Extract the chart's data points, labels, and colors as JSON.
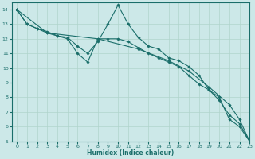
{
  "xlabel": "Humidex (Indice chaleur)",
  "bg_color": "#cce8e8",
  "grid_color": "#b0d4cc",
  "line_color": "#1a6e6a",
  "xlim": [
    -0.5,
    23
  ],
  "ylim": [
    5,
    14.5
  ],
  "xticks": [
    0,
    1,
    2,
    3,
    4,
    5,
    6,
    7,
    8,
    9,
    10,
    11,
    12,
    13,
    14,
    15,
    16,
    17,
    18,
    19,
    20,
    21,
    22,
    23
  ],
  "yticks": [
    5,
    6,
    7,
    8,
    9,
    10,
    11,
    12,
    13,
    14
  ],
  "lines": [
    {
      "x": [
        0,
        1,
        2,
        3,
        4,
        5,
        6,
        7,
        8,
        9,
        10,
        11,
        12,
        13,
        14,
        15,
        16,
        17,
        18,
        19,
        20,
        21,
        22,
        23
      ],
      "y": [
        14.0,
        13.0,
        12.7,
        12.5,
        12.2,
        12.1,
        11.5,
        11.0,
        11.8,
        13.0,
        14.3,
        13.0,
        12.1,
        11.5,
        11.3,
        10.7,
        10.5,
        10.1,
        9.5,
        8.5,
        7.8,
        6.8,
        6.2,
        5.0
      ]
    },
    {
      "x": [
        0,
        1,
        2,
        3,
        4,
        5,
        6,
        7,
        8,
        9,
        10,
        11,
        12,
        13,
        14,
        15,
        16,
        17,
        18,
        19,
        20,
        21,
        22,
        23
      ],
      "y": [
        14.0,
        13.0,
        12.7,
        12.4,
        12.2,
        12.0,
        11.0,
        10.4,
        12.0,
        12.0,
        12.0,
        11.8,
        11.4,
        11.0,
        10.7,
        10.4,
        10.1,
        9.5,
        8.9,
        8.5,
        8.0,
        6.5,
        6.0,
        5.0
      ]
    },
    {
      "x": [
        0,
        3,
        8,
        12,
        15,
        17,
        19,
        21,
        22,
        23
      ],
      "y": [
        14.0,
        12.4,
        12.0,
        11.3,
        10.5,
        9.8,
        8.7,
        7.5,
        6.5,
        5.0
      ]
    }
  ]
}
